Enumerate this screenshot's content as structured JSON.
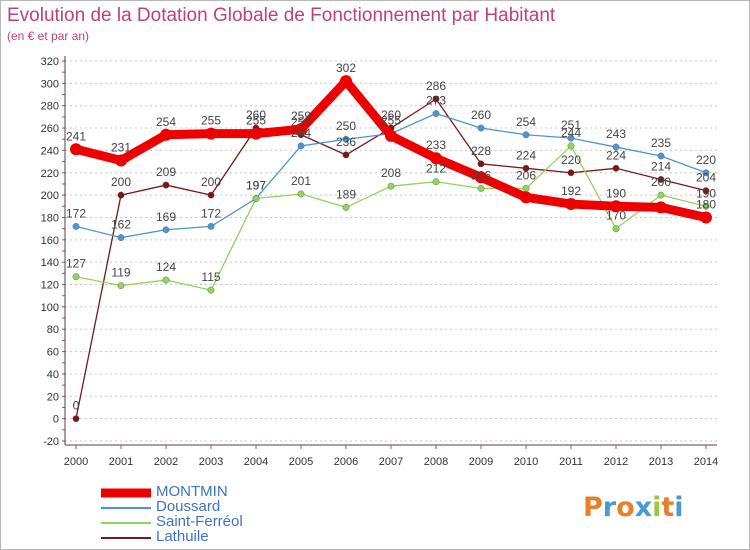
{
  "title": "Evolution de la Dotation Globale de Fonctionnement par Habitant",
  "subtitle": "(en € et par an)",
  "logo": {
    "letters": [
      "P",
      "r",
      "o",
      "x",
      "i",
      "t",
      "i"
    ],
    "colors": [
      "#e8802a",
      "#4a9ad0",
      "#e8802a",
      "#4a9ad0",
      "#9cc83c",
      "#e8802a",
      "#4a9ad0"
    ]
  },
  "chart_data": {
    "type": "line",
    "title": "Evolution de la Dotation Globale de Fonctionnement par Habitant",
    "subtitle": "(en € et par an)",
    "x": [
      "2000",
      "2001",
      "2002",
      "2003",
      "2004",
      "2005",
      "2006",
      "2007",
      "2008",
      "2009",
      "2010",
      "2011",
      "2012",
      "2013",
      "2014"
    ],
    "ylim": [
      -20,
      320
    ],
    "yticks": [
      -20,
      0,
      20,
      40,
      60,
      80,
      100,
      120,
      140,
      160,
      180,
      200,
      220,
      240,
      260,
      280,
      300,
      320
    ],
    "grid": "horizontal dotted",
    "legend": "bottom-left",
    "series": [
      {
        "name": "MONTMIN",
        "color": "#ee0000",
        "values": [
          241,
          231,
          254,
          255,
          255,
          259,
          302,
          253,
          233,
          216,
          198,
          192,
          190,
          189,
          180
        ],
        "labels": [
          "241",
          "231",
          "254",
          "255",
          "255",
          "259",
          "302",
          "",
          "233",
          "",
          "",
          "192",
          "190",
          "",
          "180"
        ]
      },
      {
        "name": "Doussard",
        "color": "#4f95d3",
        "values": [
          172,
          162,
          169,
          172,
          197,
          244,
          250,
          255,
          273,
          260,
          254,
          251,
          243,
          235,
          220
        ],
        "labels": [
          "172",
          "162",
          "169",
          "172",
          "197",
          "244",
          "250",
          "255",
          "273",
          "260",
          "254",
          "251",
          "243",
          "235",
          "220"
        ]
      },
      {
        "name": "Saint-Ferréol",
        "color": "#8fd65a",
        "values": [
          127,
          119,
          124,
          115,
          197,
          201,
          189,
          208,
          212,
          206,
          206,
          244,
          170,
          200,
          190
        ],
        "labels": [
          "127",
          "119",
          "124",
          "115",
          "197",
          "201",
          "189",
          "208",
          "212",
          "206",
          "206",
          "244",
          "170",
          "200",
          "190"
        ]
      },
      {
        "name": "Lathuile",
        "color": "#7a1818",
        "values": [
          0,
          200,
          209,
          200,
          260,
          254,
          236,
          260,
          286,
          228,
          224,
          220,
          224,
          214,
          204
        ],
        "labels": [
          "0",
          "200",
          "209",
          "200",
          "260",
          "254",
          "236",
          "260",
          "286",
          "228",
          "224",
          "220",
          "224",
          "214",
          "204"
        ]
      }
    ]
  }
}
